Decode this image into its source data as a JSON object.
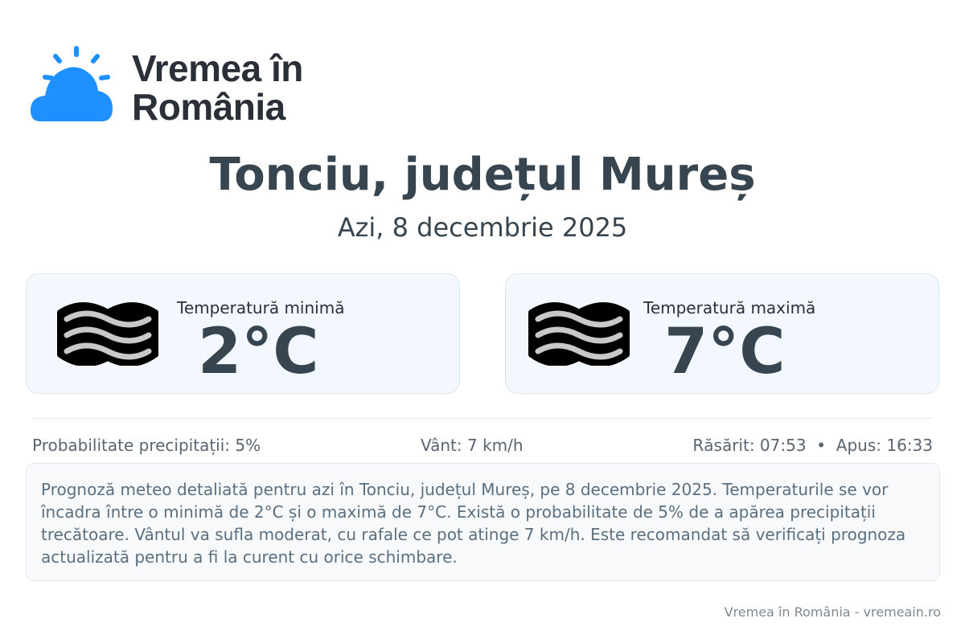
{
  "logo": {
    "line1": "Vremea în",
    "line2": "România",
    "brand_color": "#1e90ff"
  },
  "title": "Tonciu, județul Mureș",
  "date": "Azi, 8 decembrie 2025",
  "cards": [
    {
      "label": "Temperatură minimă",
      "value": "2°C",
      "icon": "fog-icon"
    },
    {
      "label": "Temperatură maximă",
      "value": "7°C",
      "icon": "fog-icon"
    }
  ],
  "stats": {
    "precip": "Probabilitate precipitații: 5%",
    "wind": "Vânt: 7 km/h",
    "sun": "Răsărit: 07:53  •  Apus: 16:33"
  },
  "description": "Prognoză meteo detaliată pentru azi în Tonciu, județul Mureș, pe 8 decembrie 2025. Temperaturile se vor încadra între o minimă de 2°C și o maximă de 7°C. Există o probabilitate de 5% de a apărea precipitații trecătoare. Vântul va sufla moderat, cu rafale ce pot atinge 7 km/h. Este recomandat să verificați prognoza actualizată pentru a fi la curent cu orice schimbare.",
  "footer": "Vremea în România - vremeain.ro"
}
